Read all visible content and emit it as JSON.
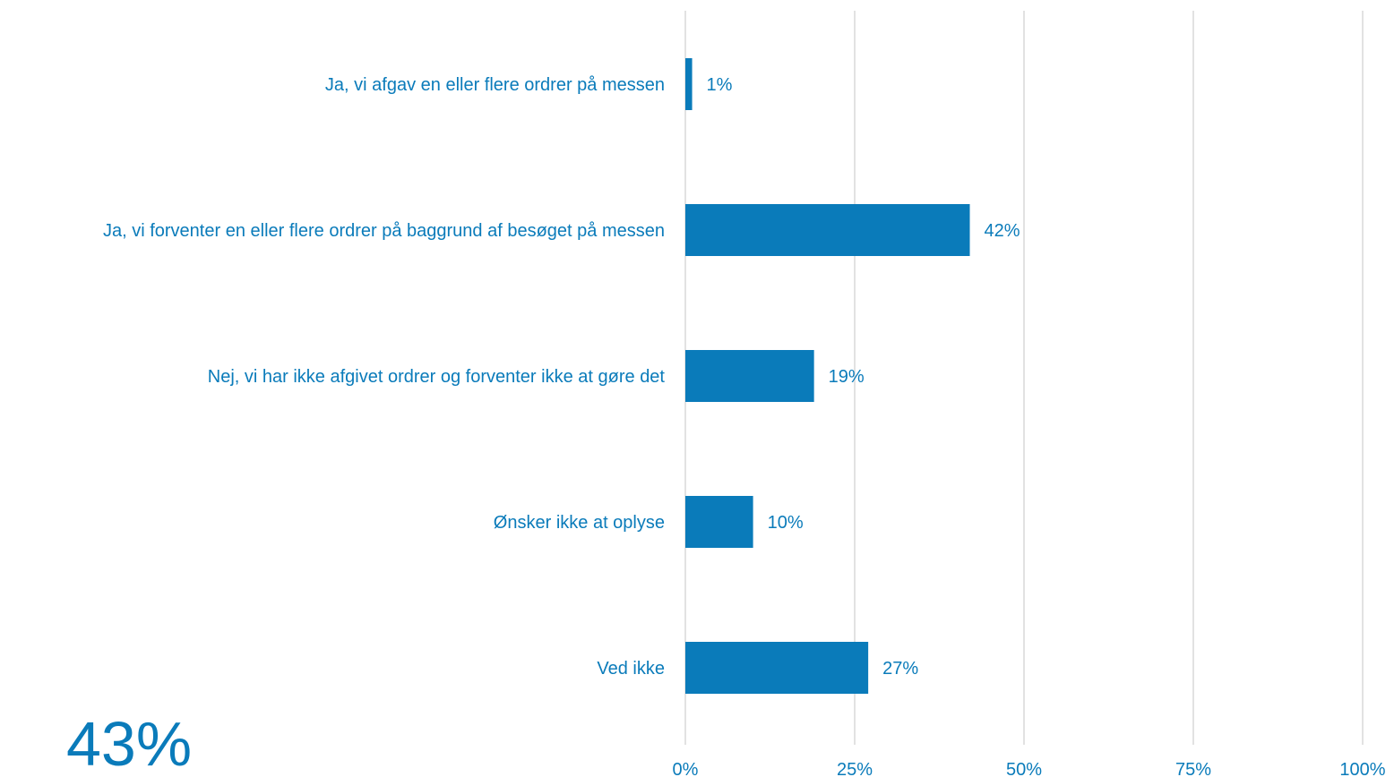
{
  "highlight_stat": "43%",
  "colors": {
    "bar": "#0a7bba",
    "text": "#0a7bba",
    "grid": "#d9d9d9"
  },
  "chart_data": {
    "type": "bar",
    "orientation": "horizontal",
    "categories": [
      "Ja, vi afgav en eller flere ordrer på messen",
      "Ja, vi forventer en eller flere ordrer på baggrund af besøget på messen",
      "Nej, vi har ikke afgivet ordrer og forventer ikke at gøre det",
      "Ønsker ikke at oplyse",
      "Ved ikke"
    ],
    "values": [
      1,
      42,
      19,
      10,
      27
    ],
    "data_labels": [
      "1%",
      "42%",
      "19%",
      "10%",
      "27%"
    ],
    "xlim": [
      0,
      100
    ],
    "xticks": [
      0,
      25,
      50,
      75,
      100
    ],
    "xtick_labels": [
      "0%",
      "25%",
      "50%",
      "75%",
      "100%"
    ],
    "grid": true,
    "legend": "none"
  }
}
